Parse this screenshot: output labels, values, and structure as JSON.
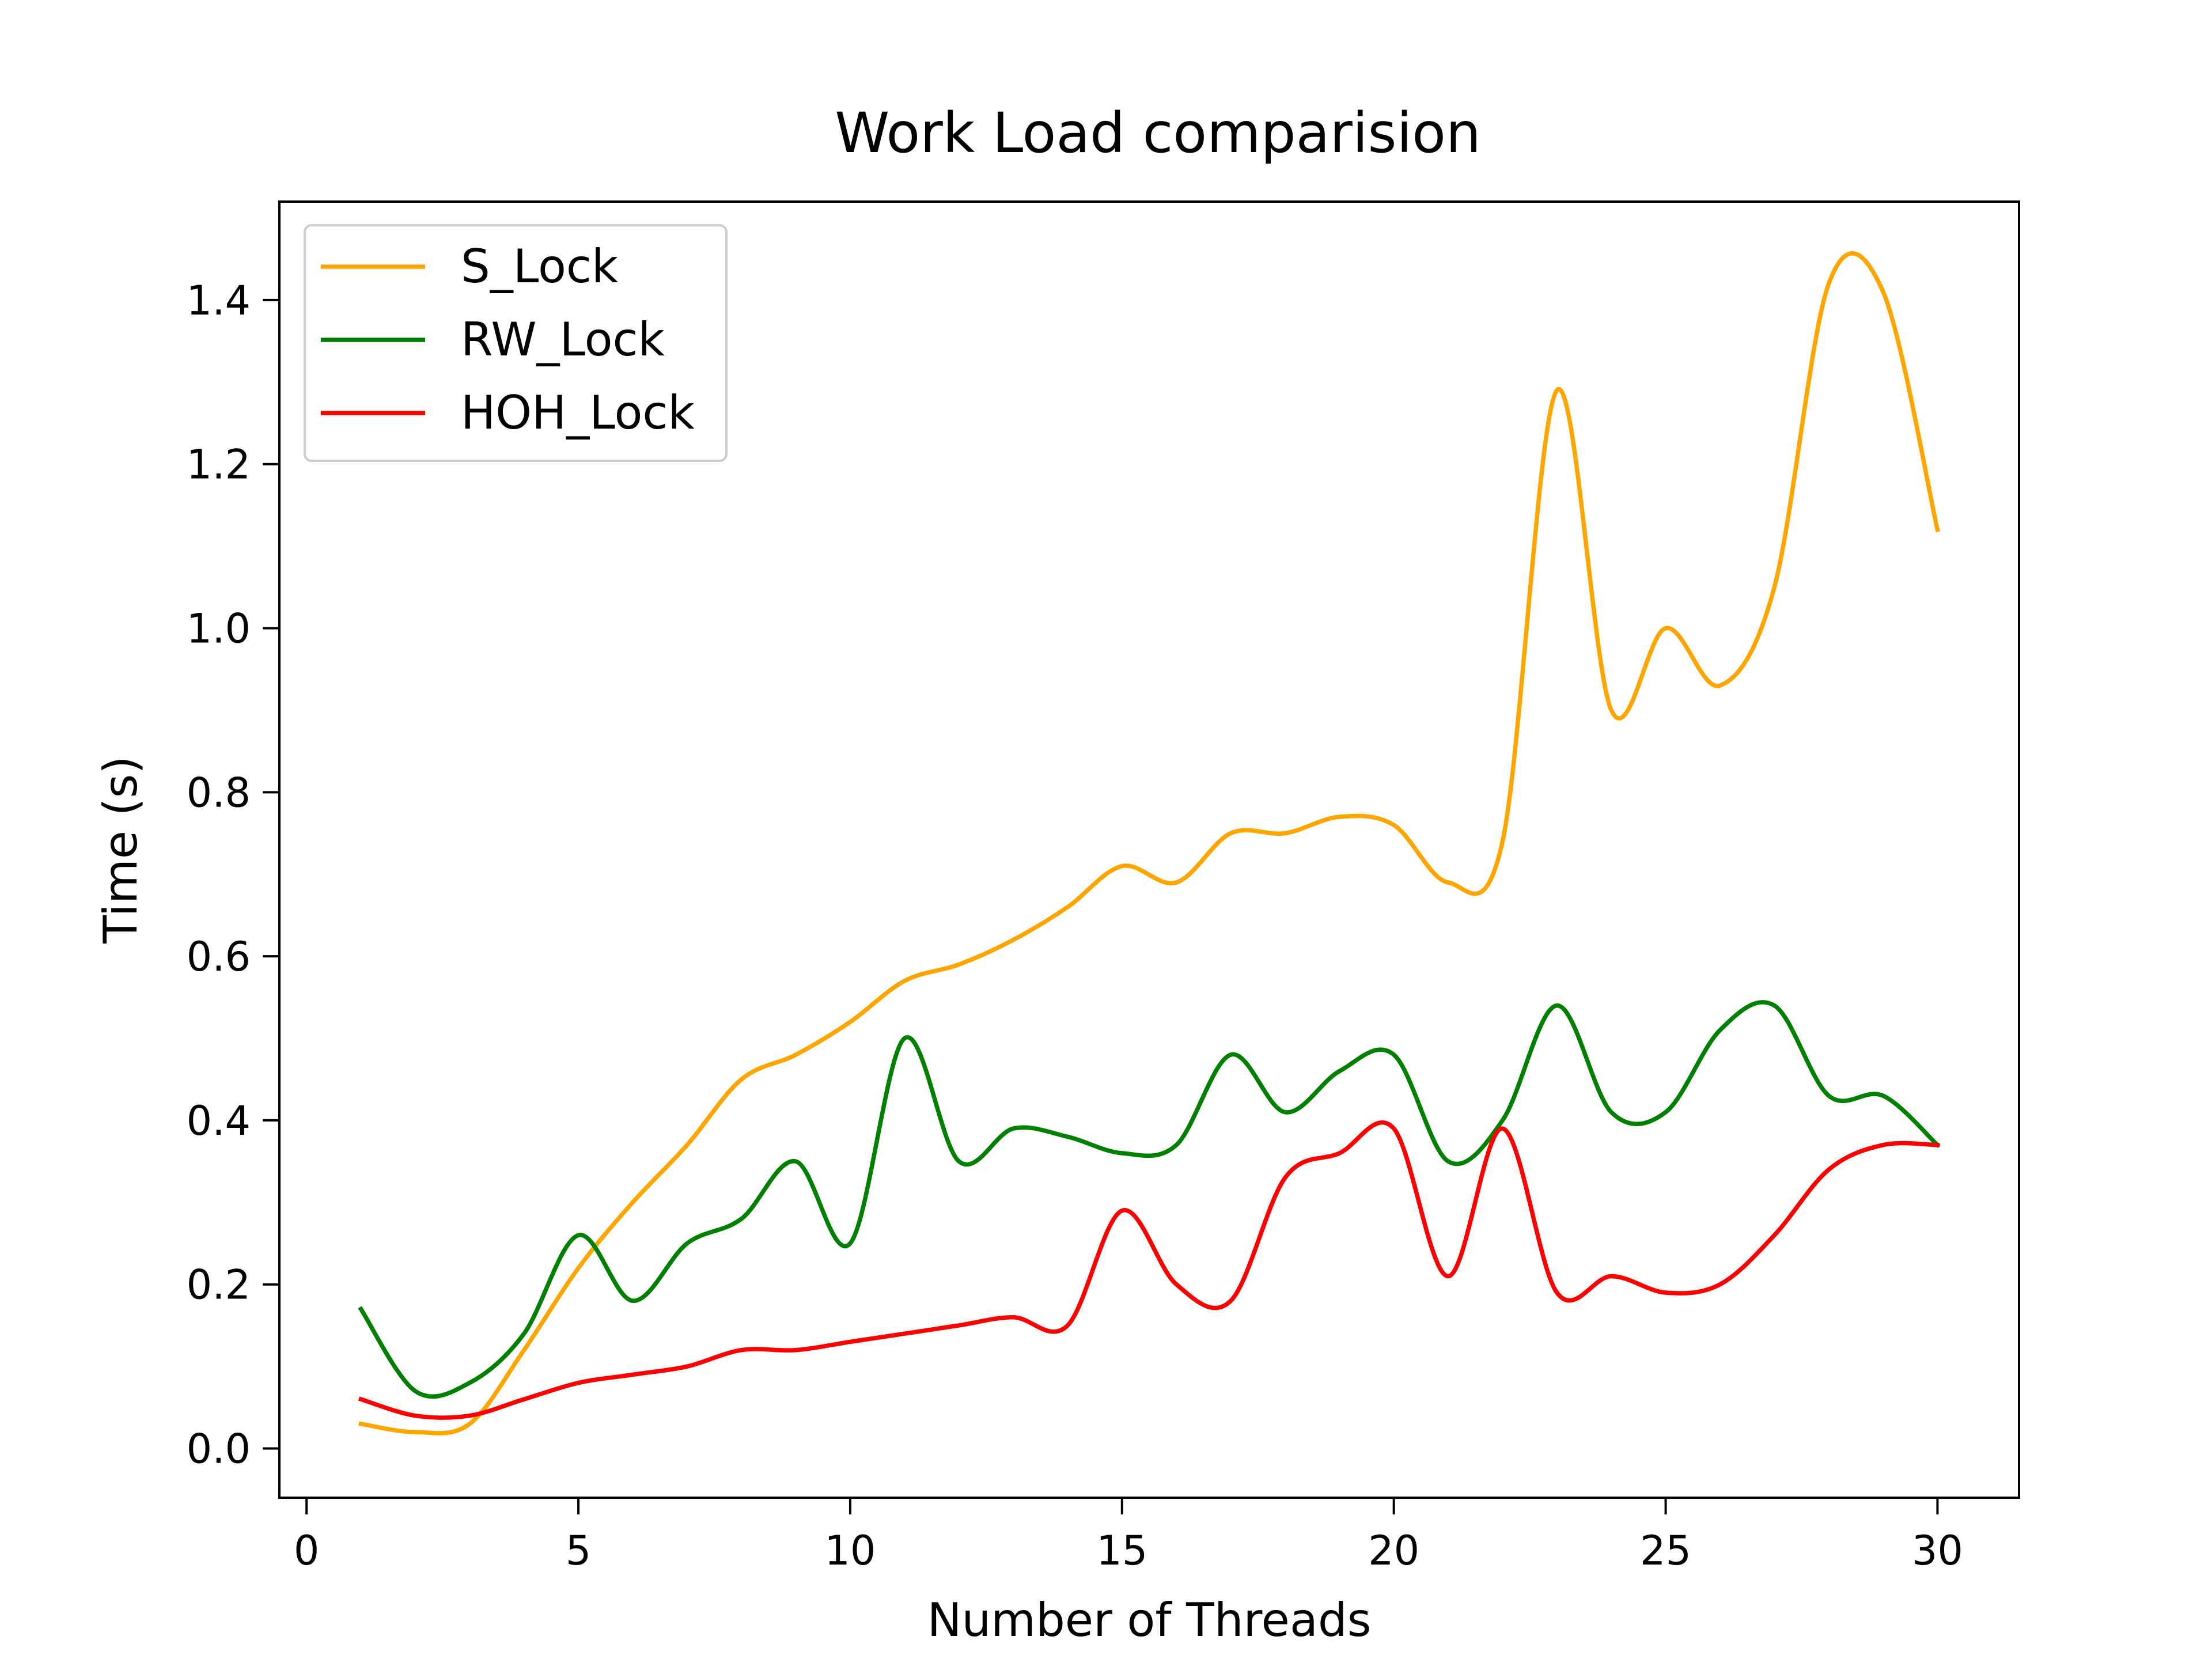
{
  "chart_data": {
    "type": "line",
    "title": "Work Load comparision",
    "xlabel": "Number of Threads",
    "ylabel": "Time (s)",
    "xlim": [
      -0.5,
      31.5
    ],
    "ylim": [
      -0.06,
      1.52
    ],
    "x_ticks": [
      0,
      5,
      10,
      15,
      20,
      25,
      30
    ],
    "y_ticks": [
      0.0,
      0.2,
      0.4,
      0.6,
      0.8,
      1.0,
      1.2,
      1.4
    ],
    "grid": false,
    "legend_position": "top-left",
    "x": [
      1,
      2,
      3,
      4,
      5,
      6,
      7,
      8,
      9,
      10,
      11,
      12,
      13,
      14,
      15,
      16,
      17,
      18,
      19,
      20,
      21,
      22,
      23,
      24,
      25,
      26,
      27,
      28,
      29,
      30
    ],
    "series": [
      {
        "name": "S_Lock",
        "color": "#ffa500",
        "values": [
          0.03,
          0.02,
          0.03,
          0.12,
          0.22,
          0.3,
          0.37,
          0.45,
          0.48,
          0.52,
          0.57,
          0.59,
          0.62,
          0.66,
          0.71,
          0.69,
          0.75,
          0.75,
          0.77,
          0.76,
          0.69,
          0.74,
          1.29,
          0.9,
          1.0,
          0.93,
          1.05,
          1.42,
          1.41,
          1.12
        ]
      },
      {
        "name": "RW_Lock",
        "color": "#008000",
        "values": [
          0.17,
          0.07,
          0.08,
          0.14,
          0.26,
          0.18,
          0.25,
          0.28,
          0.35,
          0.25,
          0.5,
          0.35,
          0.39,
          0.38,
          0.36,
          0.37,
          0.48,
          0.41,
          0.46,
          0.48,
          0.35,
          0.4,
          0.54,
          0.41,
          0.41,
          0.51,
          0.54,
          0.43,
          0.43,
          0.37
        ]
      },
      {
        "name": "HOH_Lock",
        "color": "#ff0000",
        "values": [
          0.06,
          0.04,
          0.04,
          0.06,
          0.08,
          0.09,
          0.1,
          0.12,
          0.12,
          0.13,
          0.14,
          0.15,
          0.16,
          0.15,
          0.29,
          0.2,
          0.18,
          0.33,
          0.36,
          0.39,
          0.21,
          0.39,
          0.19,
          0.21,
          0.19,
          0.2,
          0.26,
          0.34,
          0.37,
          0.37
        ]
      }
    ]
  }
}
